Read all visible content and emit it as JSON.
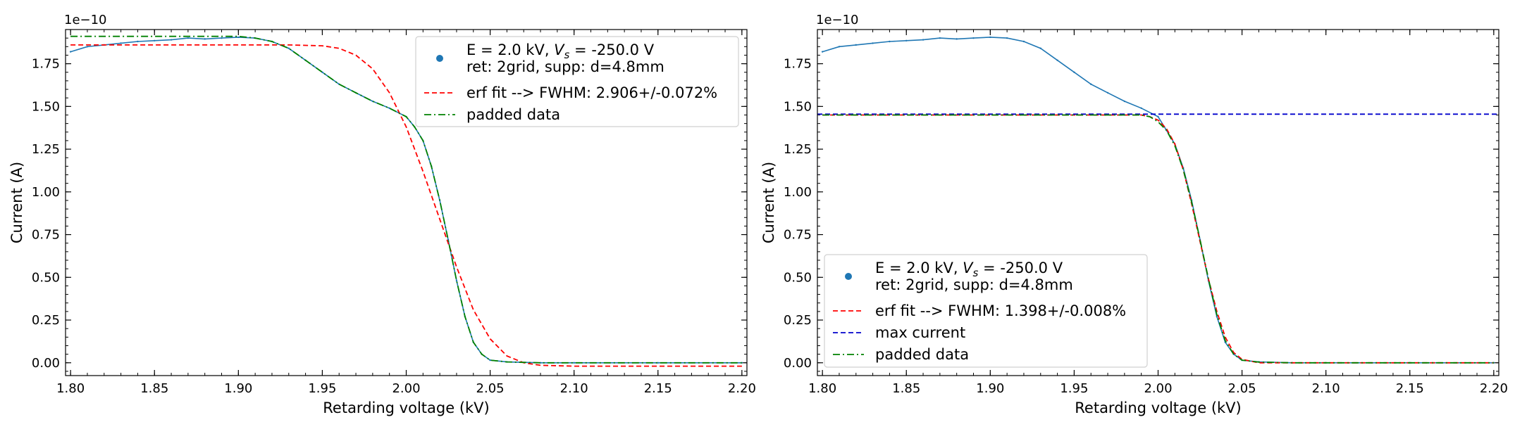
{
  "chart_data": [
    {
      "type": "line",
      "xlabel": "Retarding voltage (kV)",
      "ylabel": "Current (A)",
      "offset_text": "1e−10",
      "xlim": [
        1.797,
        2.203
      ],
      "ylim": [
        -0.075,
        1.95
      ],
      "xticks": [
        1.8,
        1.85,
        1.9,
        1.95,
        2.0,
        2.05,
        2.1,
        2.15,
        2.2
      ],
      "xtick_labels": [
        "1.80",
        "1.85",
        "1.90",
        "1.95",
        "2.00",
        "2.05",
        "2.10",
        "2.15",
        "2.20"
      ],
      "yticks": [
        0,
        0.25,
        0.5,
        0.75,
        1.0,
        1.25,
        1.5,
        1.75
      ],
      "ytick_labels": [
        "0.00",
        "0.25",
        "0.50",
        "0.75",
        "1.00",
        "1.25",
        "1.50",
        "1.75"
      ],
      "legend_position": "upper right",
      "series": [
        {
          "name": "E = 2.0 kV, V_s = -250.0 V\nret: 2grid, supp: d=4.8mm",
          "legend_line1_prefix": "E = 2.0 kV, ",
          "legend_line1_var": "V",
          "legend_line1_sub": "s",
          "legend_line1_suffix": " = -250.0 V",
          "legend_line2": "ret: 2grid, supp: d=4.8mm",
          "style": "marker",
          "color": "#1f77b4",
          "x": [
            1.8,
            1.81,
            1.82,
            1.83,
            1.84,
            1.85,
            1.86,
            1.87,
            1.88,
            1.89,
            1.9,
            1.91,
            1.92,
            1.93,
            1.94,
            1.95,
            1.96,
            1.97,
            1.98,
            1.99,
            2.0,
            2.005,
            2.01,
            2.015,
            2.02,
            2.025,
            2.03,
            2.035,
            2.04,
            2.045,
            2.05,
            2.06,
            2.08,
            2.1,
            2.15,
            2.2
          ],
          "y": [
            1.82,
            1.85,
            1.86,
            1.87,
            1.88,
            1.885,
            1.89,
            1.9,
            1.895,
            1.9,
            1.905,
            1.9,
            1.88,
            1.84,
            1.77,
            1.7,
            1.63,
            1.58,
            1.53,
            1.49,
            1.44,
            1.38,
            1.3,
            1.15,
            0.95,
            0.72,
            0.48,
            0.27,
            0.12,
            0.05,
            0.015,
            0.005,
            0.0,
            0.0,
            0.0,
            0.0
          ]
        },
        {
          "name": "erf fit --> FWHM: 2.906+/-0.072%",
          "style": "dashed",
          "color": "#ff0000",
          "x": [
            1.8,
            1.9,
            1.93,
            1.95,
            1.96,
            1.97,
            1.98,
            1.99,
            2.0,
            2.01,
            2.02,
            2.03,
            2.04,
            2.05,
            2.06,
            2.07,
            2.08,
            2.1,
            2.2
          ],
          "y": [
            1.86,
            1.86,
            1.86,
            1.855,
            1.84,
            1.8,
            1.72,
            1.58,
            1.38,
            1.12,
            0.84,
            0.56,
            0.31,
            0.14,
            0.04,
            0.0,
            -0.015,
            -0.02,
            -0.02
          ]
        },
        {
          "name": "padded data",
          "style": "dashdot",
          "color": "#008000",
          "x": [
            1.8,
            1.9,
            1.91,
            1.92,
            1.93,
            1.94,
            1.95,
            1.96,
            1.97,
            1.98,
            1.99,
            2.0,
            2.005,
            2.01,
            2.015,
            2.02,
            2.025,
            2.03,
            2.035,
            2.04,
            2.045,
            2.05,
            2.06,
            2.08,
            2.1,
            2.15,
            2.2
          ],
          "y": [
            1.91,
            1.91,
            1.9,
            1.88,
            1.84,
            1.77,
            1.7,
            1.63,
            1.58,
            1.53,
            1.49,
            1.44,
            1.38,
            1.3,
            1.15,
            0.95,
            0.72,
            0.48,
            0.27,
            0.12,
            0.05,
            0.015,
            0.005,
            0.0,
            0.0,
            0.0,
            0.0
          ]
        }
      ]
    },
    {
      "type": "line",
      "xlabel": "Retarding voltage (kV)",
      "ylabel": "Current (A)",
      "offset_text": "1e−10",
      "xlim": [
        1.797,
        2.203
      ],
      "ylim": [
        -0.075,
        1.95
      ],
      "xticks": [
        1.8,
        1.85,
        1.9,
        1.95,
        2.0,
        2.05,
        2.1,
        2.15,
        2.2
      ],
      "xtick_labels": [
        "1.80",
        "1.85",
        "1.90",
        "1.95",
        "2.00",
        "2.05",
        "2.10",
        "2.15",
        "2.20"
      ],
      "yticks": [
        0,
        0.25,
        0.5,
        0.75,
        1.0,
        1.25,
        1.5,
        1.75
      ],
      "ytick_labels": [
        "0.00",
        "0.25",
        "0.50",
        "0.75",
        "1.00",
        "1.25",
        "1.50",
        "1.75"
      ],
      "legend_position": "lower left",
      "series": [
        {
          "name": "E = 2.0 kV, V_s = -250.0 V\nret: 2grid, supp: d=4.8mm",
          "legend_line1_prefix": "E = 2.0 kV, ",
          "legend_line1_var": "V",
          "legend_line1_sub": "s",
          "legend_line1_suffix": " = -250.0 V",
          "legend_line2": "ret: 2grid, supp: d=4.8mm",
          "style": "marker",
          "color": "#1f77b4",
          "x": [
            1.8,
            1.81,
            1.82,
            1.83,
            1.84,
            1.85,
            1.86,
            1.87,
            1.88,
            1.89,
            1.9,
            1.91,
            1.92,
            1.93,
            1.94,
            1.95,
            1.96,
            1.97,
            1.98,
            1.99,
            2.0,
            2.005,
            2.01,
            2.015,
            2.02,
            2.025,
            2.03,
            2.035,
            2.04,
            2.045,
            2.05,
            2.06,
            2.08,
            2.1,
            2.15,
            2.2
          ],
          "y": [
            1.82,
            1.85,
            1.86,
            1.87,
            1.88,
            1.885,
            1.89,
            1.9,
            1.895,
            1.9,
            1.905,
            1.9,
            1.88,
            1.84,
            1.77,
            1.7,
            1.63,
            1.58,
            1.53,
            1.49,
            1.44,
            1.36,
            1.28,
            1.14,
            0.95,
            0.72,
            0.48,
            0.27,
            0.12,
            0.05,
            0.015,
            0.005,
            0.0,
            0.0,
            0.0,
            0.0
          ]
        },
        {
          "name": "erf fit --> FWHM: 1.398+/-0.008%",
          "style": "dashed",
          "color": "#ff0000",
          "x": [
            1.8,
            1.95,
            1.99,
            1.995,
            2.0,
            2.005,
            2.01,
            2.015,
            2.02,
            2.025,
            2.03,
            2.035,
            2.04,
            2.045,
            2.05,
            2.06,
            2.2
          ],
          "y": [
            1.45,
            1.45,
            1.45,
            1.44,
            1.42,
            1.37,
            1.28,
            1.13,
            0.93,
            0.71,
            0.49,
            0.3,
            0.15,
            0.06,
            0.02,
            0.0,
            0.0
          ]
        },
        {
          "name": "max current",
          "style": "dashed",
          "color": "#0000cc",
          "x": [
            1.797,
            2.203
          ],
          "y": [
            1.455,
            1.455
          ]
        },
        {
          "name": "padded data",
          "style": "dashdot",
          "color": "#008000",
          "x": [
            1.8,
            1.99,
            1.995,
            2.0,
            2.005,
            2.01,
            2.015,
            2.02,
            2.025,
            2.03,
            2.035,
            2.04,
            2.045,
            2.05,
            2.06,
            2.08,
            2.2
          ],
          "y": [
            1.45,
            1.45,
            1.44,
            1.41,
            1.36,
            1.27,
            1.13,
            0.94,
            0.72,
            0.49,
            0.28,
            0.13,
            0.05,
            0.015,
            0.004,
            0.0,
            0.0
          ]
        }
      ]
    }
  ]
}
